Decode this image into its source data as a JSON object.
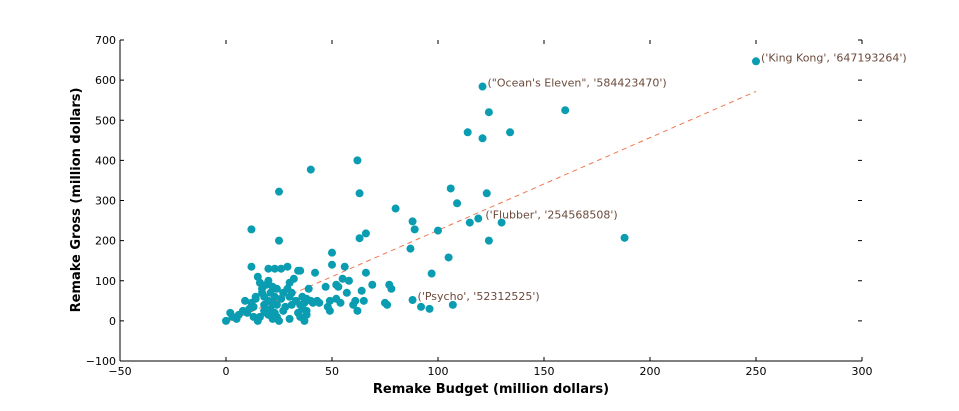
{
  "chart_data": {
    "type": "scatter",
    "xlabel": "Remake Budget (million dollars)",
    "ylabel": "Remake Gross (million dollars)",
    "xlim": [
      -50,
      300
    ],
    "ylim": [
      -100,
      700
    ],
    "xticks": [
      -50,
      0,
      50,
      100,
      150,
      200,
      250,
      300
    ],
    "yticks": [
      -100,
      0,
      100,
      200,
      300,
      400,
      500,
      600,
      700
    ],
    "tick_labels_x": [
      "−50",
      "0",
      "50",
      "100",
      "150",
      "200",
      "250",
      "300"
    ],
    "tick_labels_y": [
      "−100",
      "0",
      "100",
      "200",
      "300",
      "400",
      "500",
      "600",
      "700"
    ],
    "grid": false,
    "colors": {
      "points": "#0a9cb0",
      "trend": "#f07850",
      "annotation": "#6b4a3c"
    },
    "trend_line": {
      "x": [
        0,
        250
      ],
      "y": [
        -5,
        572
      ]
    },
    "annotations": [
      {
        "text": "('King Kong', '647193264')",
        "x": 250,
        "y": 647
      },
      {
        "text": "(\"Ocean's Eleven\", '584423470')",
        "x": 121,
        "y": 584
      },
      {
        "text": "('Flubber', '254568508')",
        "x": 120,
        "y": 255
      },
      {
        "text": "('Psycho', '52312525')",
        "x": 88,
        "y": 52
      }
    ],
    "points": [
      [
        0,
        0
      ],
      [
        2,
        20
      ],
      [
        3,
        10
      ],
      [
        5,
        5
      ],
      [
        6,
        15
      ],
      [
        8,
        25
      ],
      [
        9,
        50
      ],
      [
        10,
        20
      ],
      [
        11,
        30
      ],
      [
        12,
        45
      ],
      [
        12,
        135
      ],
      [
        12,
        228
      ],
      [
        13,
        10
      ],
      [
        13,
        35
      ],
      [
        14,
        55
      ],
      [
        14,
        60
      ],
      [
        15,
        0
      ],
      [
        15,
        110
      ],
      [
        16,
        95
      ],
      [
        16,
        10
      ],
      [
        17,
        70
      ],
      [
        17,
        80
      ],
      [
        18,
        40
      ],
      [
        18,
        60
      ],
      [
        18,
        25
      ],
      [
        19,
        90
      ],
      [
        19,
        20
      ],
      [
        20,
        100
      ],
      [
        20,
        130
      ],
      [
        20,
        50
      ],
      [
        20,
        15
      ],
      [
        21,
        70
      ],
      [
        21,
        30
      ],
      [
        22,
        85
      ],
      [
        22,
        45
      ],
      [
        22,
        5
      ],
      [
        23,
        130
      ],
      [
        23,
        60
      ],
      [
        23,
        20
      ],
      [
        24,
        10
      ],
      [
        24,
        40
      ],
      [
        24,
        80
      ],
      [
        25,
        322
      ],
      [
        25,
        200
      ],
      [
        25,
        0
      ],
      [
        26,
        130
      ],
      [
        26,
        55
      ],
      [
        27,
        70
      ],
      [
        27,
        25
      ],
      [
        28,
        35
      ],
      [
        29,
        80
      ],
      [
        29,
        135
      ],
      [
        30,
        60
      ],
      [
        30,
        95
      ],
      [
        30,
        5
      ],
      [
        31,
        40
      ],
      [
        31,
        70
      ],
      [
        32,
        105
      ],
      [
        33,
        50
      ],
      [
        34,
        125
      ],
      [
        34,
        20
      ],
      [
        35,
        125
      ],
      [
        35,
        10
      ],
      [
        35,
        40
      ],
      [
        36,
        30
      ],
      [
        36,
        60
      ],
      [
        37,
        0
      ],
      [
        37,
        45
      ],
      [
        38,
        15
      ],
      [
        38,
        25
      ],
      [
        38,
        55
      ],
      [
        39,
        80
      ],
      [
        40,
        377
      ],
      [
        40,
        50
      ],
      [
        41,
        45
      ],
      [
        42,
        120
      ],
      [
        43,
        50
      ],
      [
        44,
        45
      ],
      [
        47,
        85
      ],
      [
        48,
        35
      ],
      [
        49,
        25
      ],
      [
        49,
        50
      ],
      [
        50,
        170
      ],
      [
        50,
        140
      ],
      [
        52,
        55
      ],
      [
        52,
        90
      ],
      [
        53,
        85
      ],
      [
        54,
        45
      ],
      [
        55,
        105
      ],
      [
        56,
        135
      ],
      [
        57,
        70
      ],
      [
        58,
        100
      ],
      [
        60,
        40
      ],
      [
        61,
        50
      ],
      [
        62,
        400
      ],
      [
        62,
        25
      ],
      [
        63,
        318
      ],
      [
        63,
        206
      ],
      [
        64,
        75
      ],
      [
        65,
        50
      ],
      [
        66,
        120
      ],
      [
        66,
        218
      ],
      [
        69,
        90
      ],
      [
        75,
        45
      ],
      [
        76,
        40
      ],
      [
        77,
        90
      ],
      [
        78,
        80
      ],
      [
        80,
        280
      ],
      [
        87,
        180
      ],
      [
        88,
        52
      ],
      [
        88,
        248
      ],
      [
        89,
        228
      ],
      [
        92,
        35
      ],
      [
        96,
        30
      ],
      [
        97,
        118
      ],
      [
        100,
        225
      ],
      [
        105,
        158
      ],
      [
        106,
        330
      ],
      [
        107,
        40
      ],
      [
        109,
        293
      ],
      [
        114,
        470
      ],
      [
        115,
        245
      ],
      [
        119,
        255
      ],
      [
        121,
        584
      ],
      [
        121,
        455
      ],
      [
        123,
        318
      ],
      [
        124,
        200
      ],
      [
        124,
        520
      ],
      [
        130,
        245
      ],
      [
        134,
        470
      ],
      [
        160,
        525
      ],
      [
        188,
        207
      ],
      [
        250,
        647
      ]
    ]
  }
}
